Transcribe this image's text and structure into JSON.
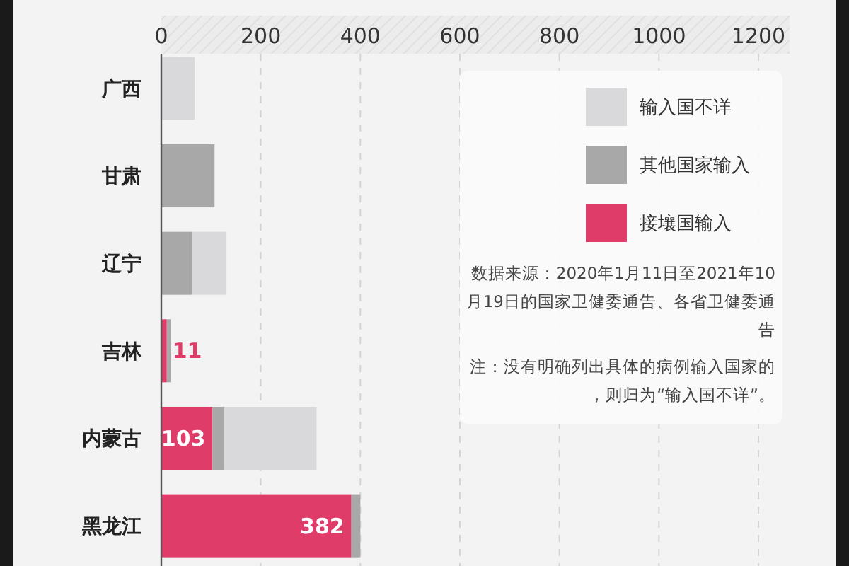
{
  "chart_data": {
    "type": "bar",
    "orientation": "horizontal",
    "stacked": true,
    "categories": [
      "广西",
      "甘肃",
      "辽宁",
      "吉林",
      "内蒙古",
      "黑龙江"
    ],
    "series": [
      {
        "name": "接壤国输入",
        "color": "#e03c6a",
        "values": [
          null,
          null,
          null,
          11,
          103,
          382
        ],
        "value_labels": [
          null,
          null,
          null,
          "11",
          "103",
          "382"
        ]
      },
      {
        "name": "其他国家输入",
        "color": "#a8a8a8",
        "values": [
          null,
          107,
          62,
          8,
          24,
          18
        ]
      },
      {
        "name": "输入国不详",
        "color": "#d9d9db",
        "values": [
          67,
          null,
          69,
          null,
          185,
          null
        ]
      }
    ],
    "xlim": [
      0,
      1200
    ],
    "xticks": [
      0,
      200,
      400,
      600,
      800,
      1000,
      1200
    ],
    "grid": "x",
    "legend": "top right",
    "annotations": [
      "数据来源：2020年1月11日至2021年10月19日的国家卫健委通告、各省卫健委通告",
      "注：没有明确列出具体的病例输入国家的，则归为“输入国不详”。"
    ]
  }
}
